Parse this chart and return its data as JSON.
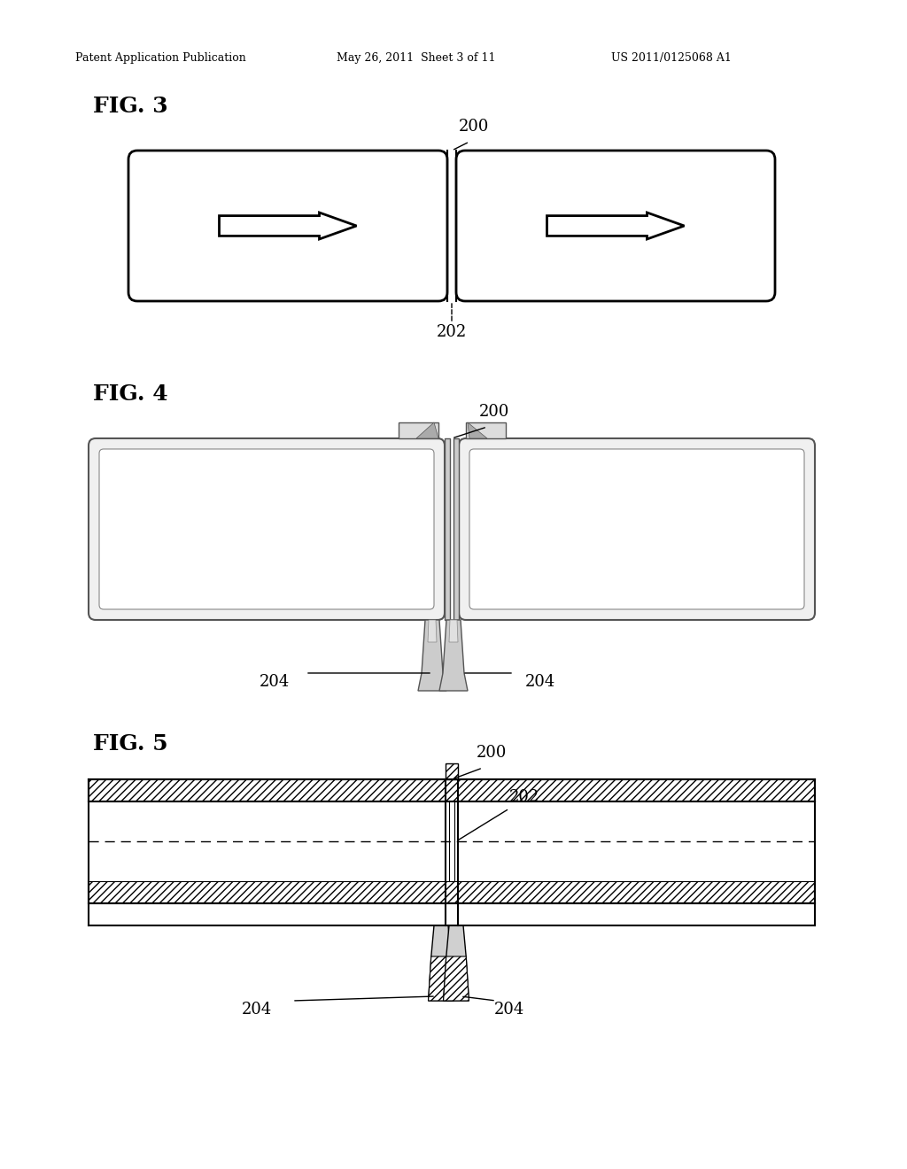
{
  "bg_color": "#ffffff",
  "header_text": "Patent Application Publication",
  "header_date": "May 26, 2011  Sheet 3 of 11",
  "header_patent": "US 2011/0125068 A1",
  "fig3_label": "FIG. 3",
  "fig4_label": "FIG. 4",
  "fig5_label": "FIG. 5",
  "label_200": "200",
  "label_202": "202",
  "label_204": "204"
}
